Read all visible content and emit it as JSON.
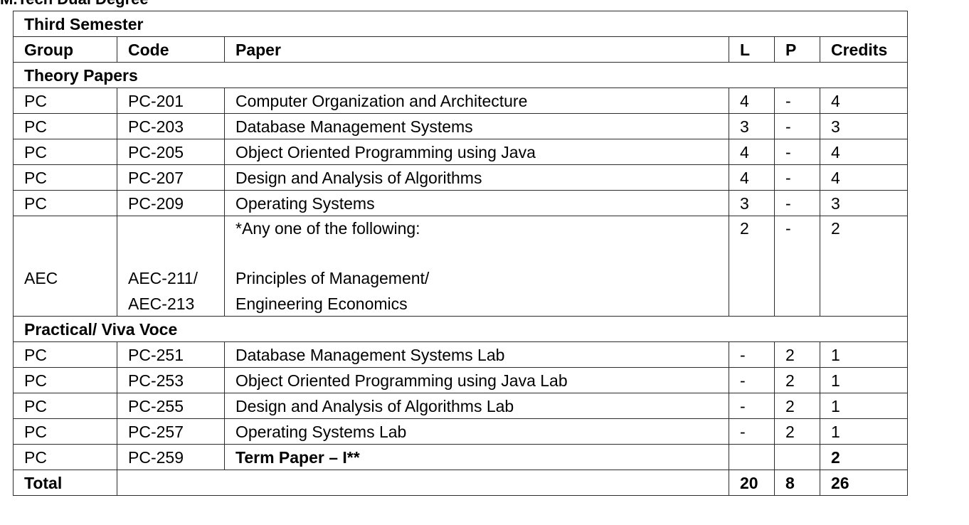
{
  "document": {
    "heading": "M.Tech Dual Degree"
  },
  "table": {
    "semester_title": "Third Semester",
    "headers": {
      "group": "Group",
      "code": "Code",
      "paper": "Paper",
      "l": "L",
      "p": "P",
      "credits": "Credits"
    },
    "theory_section": "Theory Papers",
    "theory_rows": [
      {
        "group": "PC",
        "code": "PC-201",
        "paper": "Computer Organization and Architecture",
        "l": "4",
        "p": "-",
        "credits": "4"
      },
      {
        "group": "PC",
        "code": "PC-203",
        "paper": "Database Management Systems",
        "l": "3",
        "p": "-",
        "credits": "3"
      },
      {
        "group": "PC",
        "code": "PC-205",
        "paper": "Object Oriented Programming using Java",
        "l": "4",
        "p": "-",
        "credits": "4"
      },
      {
        "group": "PC",
        "code": "PC-207",
        "paper": "Design and Analysis of Algorithms",
        "l": "4",
        "p": "-",
        "credits": "4"
      },
      {
        "group": "PC",
        "code": "PC-209",
        "paper": "Operating Systems",
        "l": "3",
        "p": "-",
        "credits": "3"
      }
    ],
    "aec_row": {
      "group": "AEC",
      "code_line1": "AEC-211/",
      "code_line2": "AEC-213",
      "paper_note": "*Any one of the following:",
      "paper_line1": "Principles of Management/",
      "paper_line2": "Engineering Economics",
      "l": "2",
      "p": "-",
      "credits": "2"
    },
    "practical_section": "Practical/ Viva Voce",
    "practical_rows": [
      {
        "group": "PC",
        "code": "PC-251",
        "paper": "Database Management Systems Lab",
        "l": "-",
        "p": "2",
        "credits": "1"
      },
      {
        "group": "PC",
        "code": "PC-253",
        "paper": "Object Oriented Programming using Java Lab",
        "l": "-",
        "p": "2",
        "credits": "1"
      },
      {
        "group": "PC",
        "code": "PC-255",
        "paper": "Design and Analysis of Algorithms Lab",
        "l": "-",
        "p": "2",
        "credits": "1"
      },
      {
        "group": "PC",
        "code": "PC-257",
        "paper": "Operating Systems Lab",
        "l": "-",
        "p": "2",
        "credits": "1"
      }
    ],
    "term_paper_row": {
      "group": "PC",
      "code": "PC-259",
      "paper": "Term Paper – I**",
      "l": "",
      "p": "",
      "credits": "2"
    },
    "total_row": {
      "label": "Total",
      "l": "20",
      "p": "8",
      "credits": "26"
    }
  }
}
